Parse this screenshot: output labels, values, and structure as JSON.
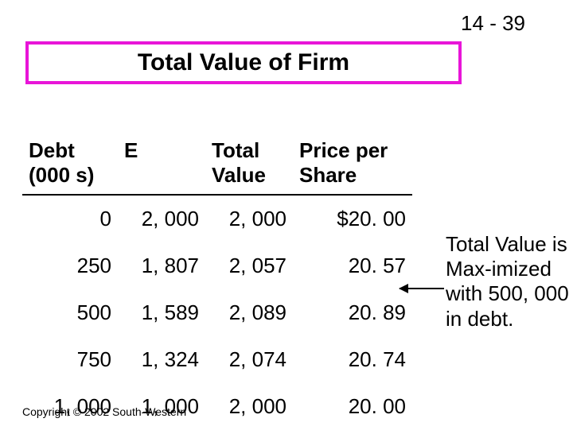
{
  "page_number": "14 - 39",
  "title": "Total Value of Firm",
  "title_border_color": "#e815d8",
  "table": {
    "headers": {
      "debt": "Debt\n(000 s)",
      "e": "E",
      "total": "Total\nValue",
      "price": "Price per\nShare"
    },
    "rows": [
      {
        "debt": "0",
        "e": "2, 000",
        "total": "2, 000",
        "price": "$20. 00"
      },
      {
        "debt": "250",
        "e": "1, 807",
        "total": "2, 057",
        "price": "20. 57"
      },
      {
        "debt": "500",
        "e": "1, 589",
        "total": "2, 089",
        "price": "20. 89"
      },
      {
        "debt": "750",
        "e": "1, 324",
        "total": "2, 074",
        "price": "20. 74"
      },
      {
        "debt": "1, 000",
        "e": "1, 000",
        "total": "2, 000",
        "price": "20. 00"
      }
    ]
  },
  "annotation": "Total Value is Max-imized with 500, 000 in debt.",
  "copyright": "Copyright © 2002 South-Western"
}
